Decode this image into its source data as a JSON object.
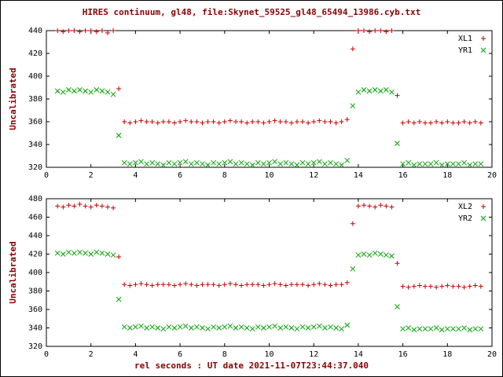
{
  "title": "HIRES continuum, gl48, file:Skynet_59525_gl48_65494_13986.cyb.txt",
  "x_axis_label": "rel seconds : UT date 2021-11-07T23:44:37.040",
  "colors": {
    "red": "#cc0000",
    "green": "#00a000",
    "label": "#8b0000",
    "axis": "#000000"
  },
  "chart_data": [
    {
      "type": "scatter",
      "title": "",
      "ylabel": "Uncalibrated",
      "xlabel": "",
      "xlim": [
        0,
        20
      ],
      "ylim": [
        320,
        440
      ],
      "xticks": [
        0,
        2,
        4,
        6,
        8,
        10,
        12,
        14,
        16,
        18,
        20
      ],
      "yticks": [
        320,
        340,
        360,
        380,
        400,
        420,
        440
      ],
      "grid": false,
      "legend_position": "top-right",
      "x": [
        0.5,
        0.75,
        1,
        1.25,
        1.5,
        1.75,
        2,
        2.25,
        2.5,
        2.75,
        3,
        3.25,
        3.5,
        3.75,
        4,
        4.25,
        4.5,
        4.75,
        5,
        5.25,
        5.5,
        5.75,
        6,
        6.25,
        6.5,
        6.75,
        7,
        7.25,
        7.5,
        7.75,
        8,
        8.25,
        8.5,
        8.75,
        9,
        9.25,
        9.5,
        9.75,
        10,
        10.25,
        10.5,
        10.75,
        11,
        11.25,
        11.5,
        11.75,
        12,
        12.25,
        12.5,
        12.75,
        13,
        13.25,
        13.5,
        13.75,
        14,
        14.25,
        14.5,
        14.75,
        15,
        15.25,
        15.5,
        15.75,
        16,
        16.25,
        16.5,
        16.75,
        17,
        17.25,
        17.5,
        17.75,
        18,
        18.25,
        18.5,
        18.75,
        19,
        19.25,
        19.5
      ],
      "series": [
        {
          "name": "XL1",
          "marker": "plus",
          "color": "#cc0000",
          "y": [
            440,
            439,
            440,
            440,
            439,
            440,
            440,
            439,
            440,
            438,
            440,
            389,
            360,
            359,
            360,
            361,
            360,
            360,
            359,
            360,
            360,
            359,
            360,
            361,
            360,
            360,
            359,
            360,
            360,
            359,
            360,
            361,
            360,
            360,
            359,
            360,
            360,
            359,
            360,
            361,
            360,
            360,
            359,
            360,
            360,
            359,
            360,
            361,
            360,
            360,
            359,
            360,
            362,
            424,
            440,
            440,
            439,
            440,
            440,
            439,
            440,
            383,
            359,
            360,
            359,
            360,
            359,
            359,
            360,
            359,
            360,
            359,
            359,
            360,
            359,
            360,
            359
          ]
        },
        {
          "name": "YR1",
          "marker": "cross",
          "color": "#00a000",
          "y": [
            387,
            386,
            388,
            387,
            388,
            387,
            386,
            388,
            387,
            386,
            384,
            348,
            324,
            323,
            324,
            325,
            323,
            324,
            323,
            322,
            324,
            323,
            324,
            325,
            323,
            324,
            323,
            322,
            324,
            323,
            324,
            325,
            323,
            324,
            323,
            322,
            324,
            323,
            324,
            325,
            323,
            324,
            323,
            322,
            324,
            323,
            324,
            325,
            323,
            324,
            323,
            322,
            326,
            374,
            386,
            388,
            387,
            388,
            387,
            388,
            386,
            341,
            323,
            324,
            322,
            323,
            323,
            323,
            324,
            322,
            323,
            323,
            323,
            324,
            322,
            323,
            323
          ]
        }
      ]
    },
    {
      "type": "scatter",
      "title": "",
      "ylabel": "Uncalibrated",
      "xlabel": "rel seconds : UT date 2021-11-07T23:44:37.040",
      "xlim": [
        0,
        20
      ],
      "ylim": [
        320,
        480
      ],
      "xticks": [
        0,
        2,
        4,
        6,
        8,
        10,
        12,
        14,
        16,
        18,
        20
      ],
      "yticks": [
        320,
        340,
        360,
        380,
        400,
        420,
        440,
        460,
        480
      ],
      "grid": false,
      "legend_position": "top-right",
      "x": [
        0.5,
        0.75,
        1,
        1.25,
        1.5,
        1.75,
        2,
        2.25,
        2.5,
        2.75,
        3,
        3.25,
        3.5,
        3.75,
        4,
        4.25,
        4.5,
        4.75,
        5,
        5.25,
        5.5,
        5.75,
        6,
        6.25,
        6.5,
        6.75,
        7,
        7.25,
        7.5,
        7.75,
        8,
        8.25,
        8.5,
        8.75,
        9,
        9.25,
        9.5,
        9.75,
        10,
        10.25,
        10.5,
        10.75,
        11,
        11.25,
        11.5,
        11.75,
        12,
        12.25,
        12.5,
        12.75,
        13,
        13.25,
        13.5,
        13.75,
        14,
        14.25,
        14.5,
        14.75,
        15,
        15.25,
        15.5,
        15.75,
        16,
        16.25,
        16.5,
        16.75,
        17,
        17.25,
        17.5,
        17.75,
        18,
        18.25,
        18.5,
        18.75,
        19,
        19.25,
        19.5
      ],
      "series": [
        {
          "name": "XL2",
          "marker": "plus",
          "color": "#cc0000",
          "y": [
            472,
            471,
            473,
            472,
            474,
            472,
            471,
            473,
            472,
            471,
            470,
            417,
            387,
            386,
            387,
            388,
            387,
            386,
            387,
            387,
            387,
            386,
            387,
            388,
            387,
            386,
            387,
            387,
            387,
            386,
            387,
            388,
            387,
            386,
            387,
            387,
            387,
            386,
            387,
            388,
            387,
            386,
            387,
            387,
            387,
            386,
            387,
            388,
            387,
            386,
            387,
            387,
            389,
            453,
            472,
            473,
            472,
            471,
            473,
            472,
            471,
            410,
            385,
            384,
            385,
            386,
            385,
            385,
            384,
            385,
            386,
            385,
            385,
            384,
            385,
            386,
            385
          ]
        },
        {
          "name": "YR2",
          "marker": "cross",
          "color": "#00a000",
          "y": [
            421,
            420,
            422,
            421,
            422,
            421,
            420,
            422,
            421,
            420,
            419,
            371,
            341,
            340,
            341,
            342,
            340,
            341,
            340,
            339,
            341,
            340,
            341,
            342,
            340,
            341,
            340,
            339,
            341,
            340,
            341,
            342,
            340,
            341,
            340,
            339,
            341,
            340,
            341,
            342,
            340,
            341,
            340,
            339,
            341,
            340,
            341,
            342,
            340,
            341,
            340,
            339,
            343,
            404,
            419,
            420,
            419,
            421,
            420,
            419,
            418,
            363,
            339,
            340,
            338,
            339,
            339,
            339,
            340,
            338,
            339,
            339,
            339,
            340,
            338,
            339,
            339
          ]
        }
      ]
    }
  ]
}
